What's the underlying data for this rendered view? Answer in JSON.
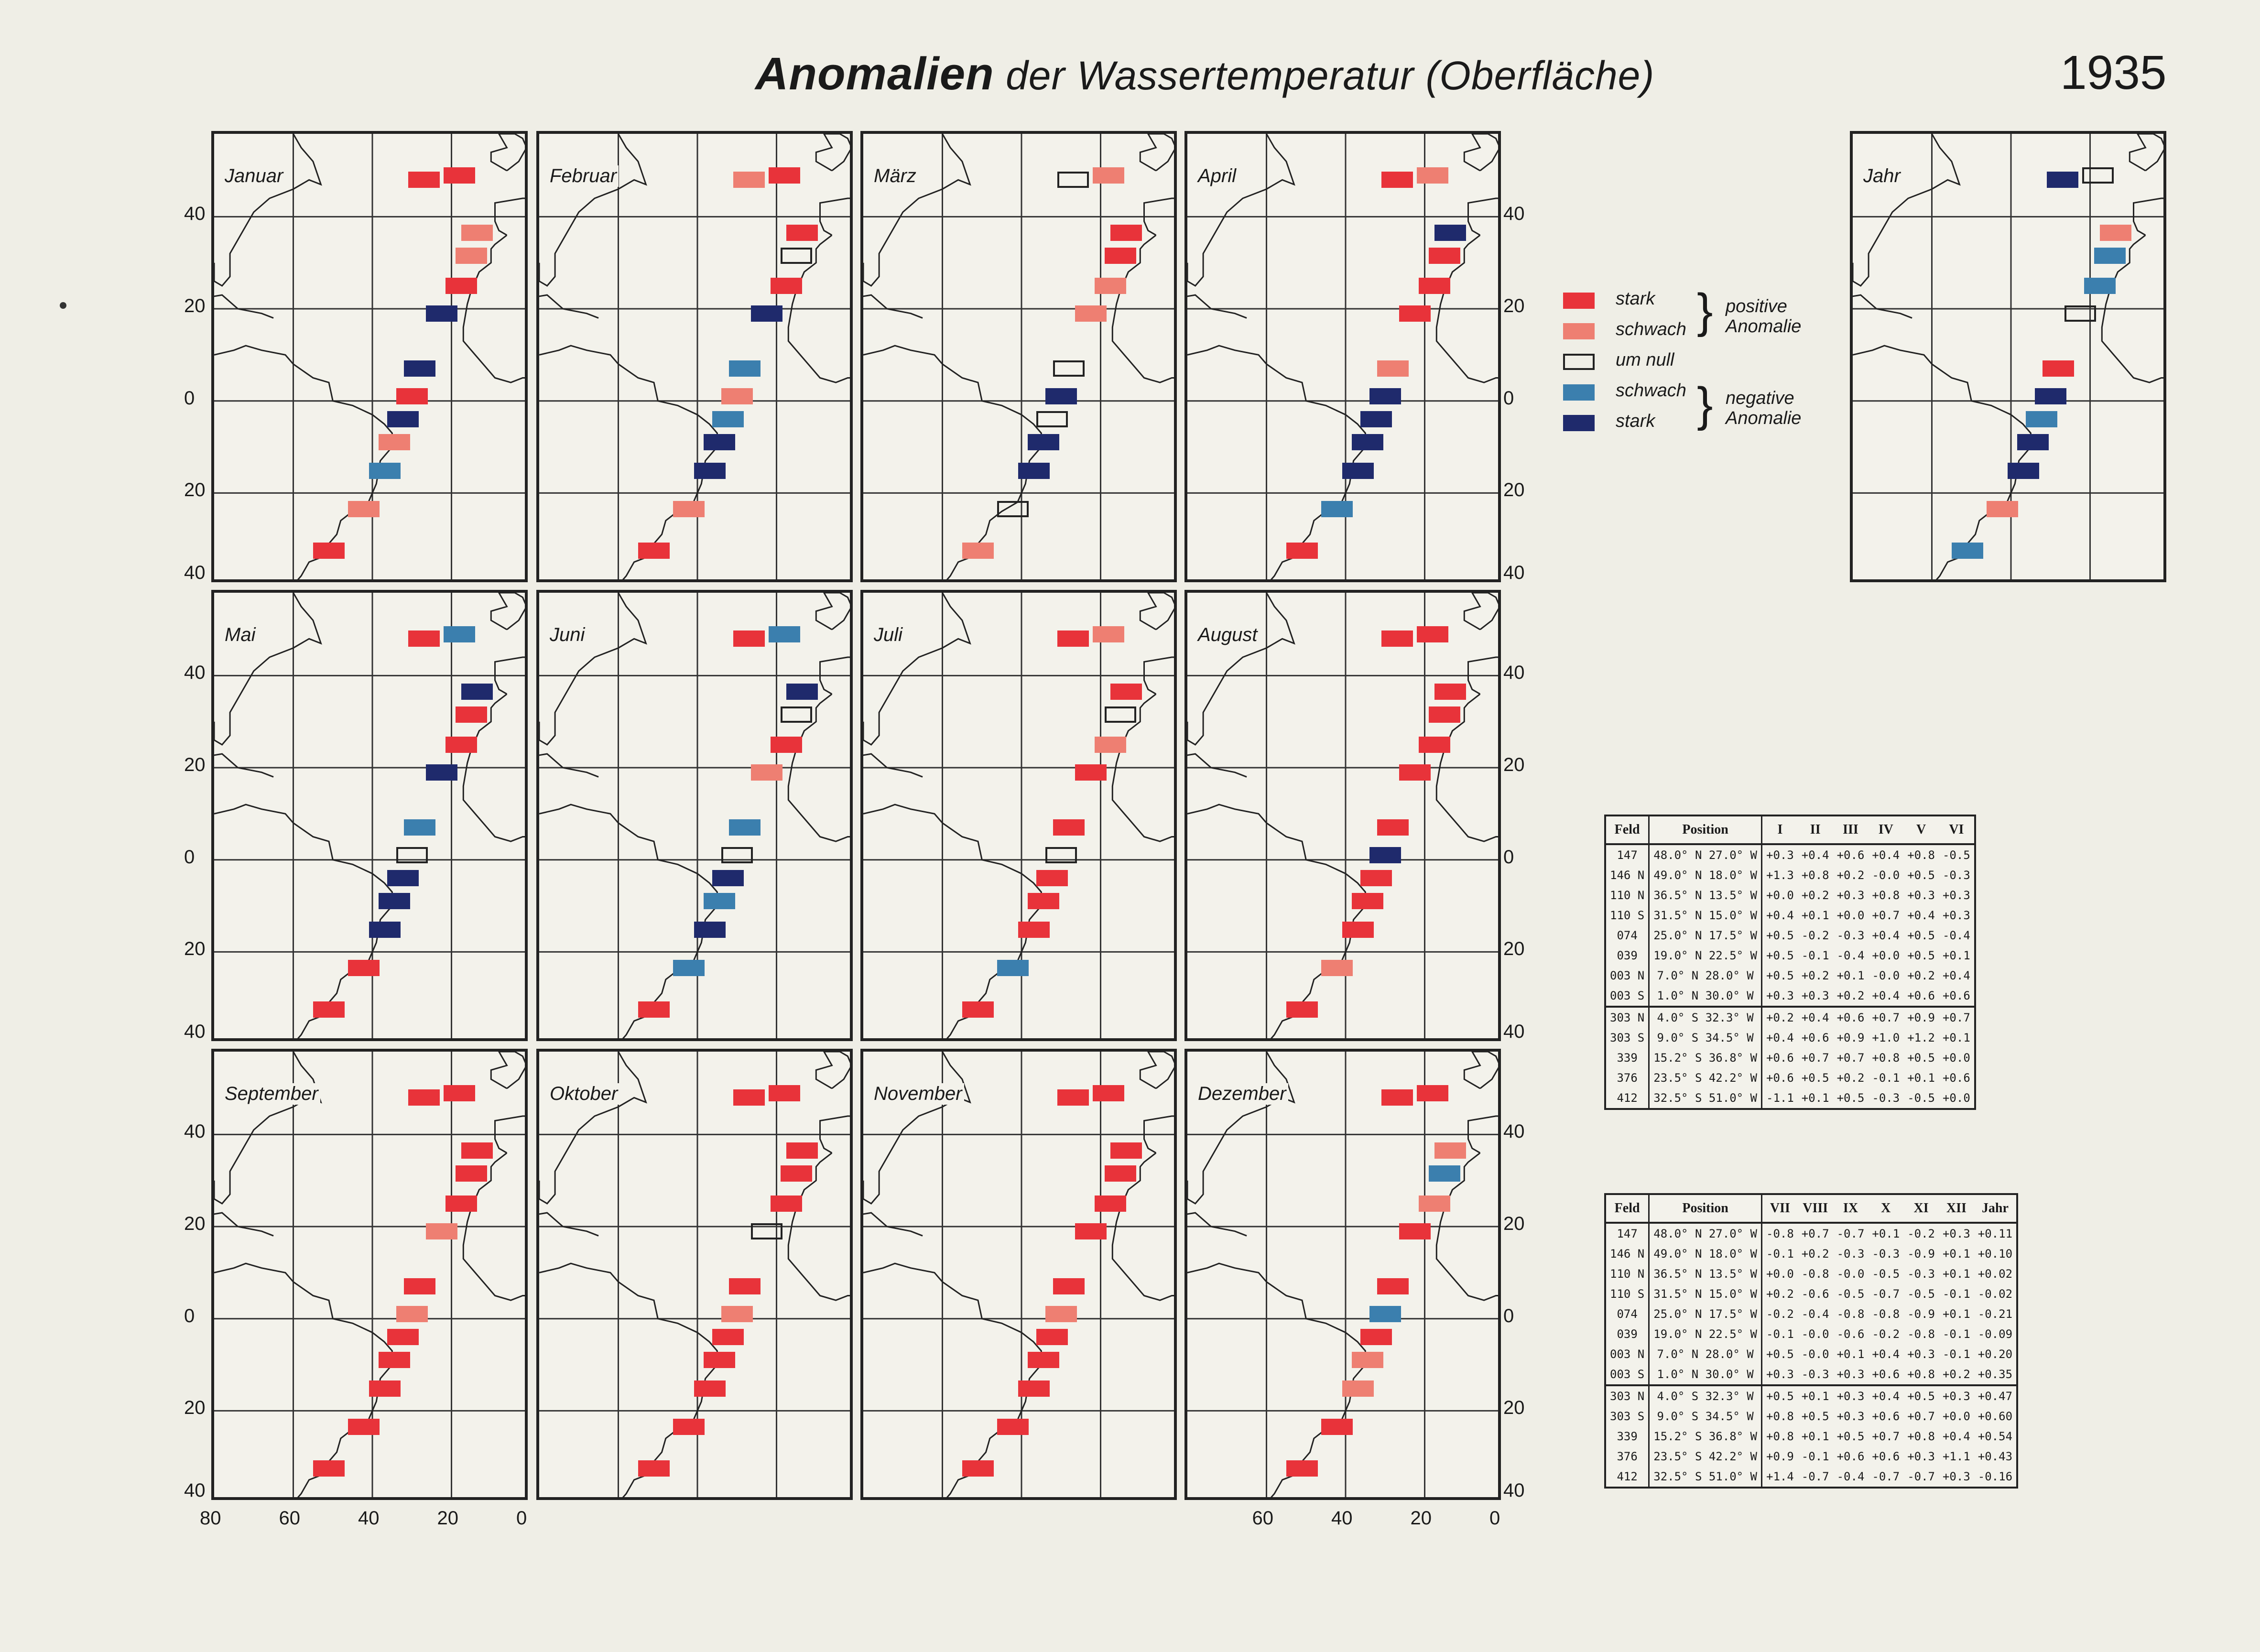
{
  "title_main": "Anomalien",
  "title_rest": "der Wassertemperatur (Oberfläche)",
  "year": "1935",
  "months": [
    "Januar",
    "Februar",
    "März",
    "April",
    "Mai",
    "Juni",
    "Juli",
    "August",
    "September",
    "Oktober",
    "November",
    "Dezember"
  ],
  "annual_label": "Jahr",
  "axis_lat_labels": [
    "40",
    "20",
    "0",
    "20",
    "40"
  ],
  "axis_lon_labels": [
    "80",
    "60",
    "40",
    "20",
    "0"
  ],
  "legend": {
    "items": [
      "stark",
      "schwach",
      "um null",
      "schwach",
      "stark"
    ],
    "positive_label": [
      "positive",
      "Anomalie"
    ],
    "negative_label": [
      "negative",
      "Anomalie"
    ]
  },
  "colors": {
    "stark_positive": "#e8333a",
    "schwach_positive": "#ee7f72",
    "um_null": "#ffffff",
    "schwach_negative": "#3b7fae",
    "stark_negative": "#1f2a6c"
  },
  "fields": [
    {
      "feld": "147",
      "position": "48.0° N 27.0° W",
      "lat": 48.0,
      "lon": 27.0
    },
    {
      "feld": "146 N",
      "position": "49.0° N 18.0° W",
      "lat": 49.0,
      "lon": 18.0
    },
    {
      "feld": "110 N",
      "position": "36.5° N 13.5° W",
      "lat": 36.5,
      "lon": 13.5
    },
    {
      "feld": "110 S",
      "position": "31.5° N 15.0° W",
      "lat": 31.5,
      "lon": 15.0
    },
    {
      "feld": "074",
      "position": "25.0° N 17.5° W",
      "lat": 25.0,
      "lon": 17.5
    },
    {
      "feld": "039",
      "position": "19.0° N 22.5° W",
      "lat": 19.0,
      "lon": 22.5
    },
    {
      "feld": "003 N",
      "position": "7.0° N 28.0° W",
      "lat": 7.0,
      "lon": 28.0
    },
    {
      "feld": "003 S",
      "position": "1.0° N 30.0° W",
      "lat": 1.0,
      "lon": 30.0
    },
    {
      "feld": "303 N",
      "position": "4.0° S 32.3° W",
      "lat": -4.0,
      "lon": 32.3
    },
    {
      "feld": "303 S",
      "position": "9.0° S 34.5° W",
      "lat": -9.0,
      "lon": 34.5
    },
    {
      "feld": "339",
      "position": "15.2° S 36.8° W",
      "lat": -15.2,
      "lon": 36.8
    },
    {
      "feld": "376",
      "position": "23.5° S 42.2° W",
      "lat": -23.5,
      "lon": 42.2
    },
    {
      "feld": "412",
      "position": "32.5° S 51.0° W",
      "lat": -32.5,
      "lon": 51.0
    }
  ],
  "table1": {
    "headers": [
      "Feld",
      "Position",
      "I",
      "II",
      "III",
      "IV",
      "V",
      "VI"
    ],
    "rows": [
      [
        "147",
        "48.0° N 27.0° W",
        "+0.3",
        "+0.4",
        "+0.6",
        "+0.4",
        "+0.8",
        "-0.5"
      ],
      [
        "146 N",
        "49.0° N 18.0° W",
        "+1.3",
        "+0.8",
        "+0.2",
        "-0.0",
        "+0.5",
        "-0.3"
      ],
      [
        "110 N",
        "36.5° N 13.5° W",
        "+0.0",
        "+0.2",
        "+0.3",
        "+0.8",
        "+0.3",
        "+0.3"
      ],
      [
        "110 S",
        "31.5° N 15.0° W",
        "+0.4",
        "+0.1",
        "+0.0",
        "+0.7",
        "+0.4",
        "+0.3"
      ],
      [
        "074",
        "25.0° N 17.5° W",
        "+0.5",
        "-0.2",
        "-0.3",
        "+0.4",
        "+0.5",
        "-0.4"
      ],
      [
        "039",
        "19.0° N 22.5° W",
        "+0.5",
        "-0.1",
        "-0.4",
        "+0.0",
        "+0.5",
        "+0.1"
      ],
      [
        "003 N",
        "7.0° N 28.0° W",
        "+0.5",
        "+0.2",
        "+0.1",
        "-0.0",
        "+0.2",
        "+0.4"
      ],
      [
        "003 S",
        "1.0° N 30.0° W",
        "+0.3",
        "+0.3",
        "+0.2",
        "+0.4",
        "+0.6",
        "+0.6"
      ],
      [
        "303 N",
        "4.0° S 32.3° W",
        "+0.2",
        "+0.4",
        "+0.6",
        "+0.7",
        "+0.9",
        "+0.7"
      ],
      [
        "303 S",
        "9.0° S 34.5° W",
        "+0.4",
        "+0.6",
        "+0.9",
        "+1.0",
        "+1.2",
        "+0.1"
      ],
      [
        "339",
        "15.2° S 36.8° W",
        "+0.6",
        "+0.7",
        "+0.7",
        "+0.8",
        "+0.5",
        "+0.0"
      ],
      [
        "376",
        "23.5° S 42.2° W",
        "+0.6",
        "+0.5",
        "+0.2",
        "-0.1",
        "+0.1",
        "+0.6"
      ],
      [
        "412",
        "32.5° S 51.0° W",
        "-1.1",
        "+0.1",
        "+0.5",
        "-0.3",
        "-0.5",
        "+0.0"
      ]
    ]
  },
  "table2": {
    "headers": [
      "Feld",
      "Position",
      "VII",
      "VIII",
      "IX",
      "X",
      "XI",
      "XII",
      "Jahr"
    ],
    "rows": [
      [
        "147",
        "48.0° N 27.0° W",
        "-0.8",
        "+0.7",
        "-0.7",
        "+0.1",
        "-0.2",
        "+0.3",
        "+0.11"
      ],
      [
        "146 N",
        "49.0° N 18.0° W",
        "-0.1",
        "+0.2",
        "-0.3",
        "-0.3",
        "-0.9",
        "+0.1",
        "+0.10"
      ],
      [
        "110 N",
        "36.5° N 13.5° W",
        "+0.0",
        "-0.8",
        "-0.0",
        "-0.5",
        "-0.3",
        "+0.1",
        "+0.02"
      ],
      [
        "110 S",
        "31.5° N 15.0° W",
        "+0.2",
        "-0.6",
        "-0.5",
        "-0.7",
        "-0.5",
        "-0.1",
        "-0.02"
      ],
      [
        "074",
        "25.0° N 17.5° W",
        "-0.2",
        "-0.4",
        "-0.8",
        "-0.8",
        "-0.9",
        "+0.1",
        "-0.21"
      ],
      [
        "039",
        "19.0° N 22.5° W",
        "-0.1",
        "-0.0",
        "-0.6",
        "-0.2",
        "-0.8",
        "-0.1",
        "-0.09"
      ],
      [
        "003 N",
        "7.0° N 28.0° W",
        "+0.5",
        "-0.0",
        "+0.1",
        "+0.4",
        "+0.3",
        "-0.1",
        "+0.20"
      ],
      [
        "003 S",
        "1.0° N 30.0° W",
        "+0.3",
        "-0.3",
        "+0.3",
        "+0.6",
        "+0.8",
        "+0.2",
        "+0.35"
      ],
      [
        "303 N",
        "4.0° S 32.3° W",
        "+0.5",
        "+0.1",
        "+0.3",
        "+0.4",
        "+0.5",
        "+0.3",
        "+0.47"
      ],
      [
        "303 S",
        "9.0° S 34.5° W",
        "+0.8",
        "+0.5",
        "+0.3",
        "+0.6",
        "+0.7",
        "+0.0",
        "+0.60"
      ],
      [
        "339",
        "15.2° S 36.8° W",
        "+0.8",
        "+0.1",
        "+0.5",
        "+0.7",
        "+0.8",
        "+0.4",
        "+0.54"
      ],
      [
        "376",
        "23.5° S 42.2° W",
        "+0.9",
        "-0.1",
        "+0.6",
        "+0.6",
        "+0.3",
        "+1.1",
        "+0.43"
      ],
      [
        "412",
        "32.5° S 51.0° W",
        "+1.4",
        "-0.7",
        "-0.4",
        "-0.7",
        "-0.7",
        "+0.3",
        "-0.16"
      ]
    ]
  },
  "categories": [
    [
      "ss",
      "sw",
      "nu",
      "ss",
      "ss",
      "ss",
      "ss",
      "ss",
      "ss",
      "ss",
      "ss",
      "ss",
      "nk"
    ],
    [
      "ss",
      "ss",
      "sw",
      "sw",
      "ns",
      "ns",
      "sw",
      "ss",
      "ss",
      "ss",
      "ss",
      "ss",
      "nu"
    ],
    [
      "sw",
      "ss",
      "ss",
      "nk",
      "nk",
      "nk",
      "ss",
      "ss",
      "ss",
      "ss",
      "ss",
      "sw",
      "sw"
    ],
    [
      "sw",
      "nu",
      "ss",
      "ss",
      "ss",
      "nu",
      "nu",
      "ss",
      "ss",
      "ss",
      "ss",
      "ns",
      "ns"
    ],
    [
      "ss",
      "ss",
      "sw",
      "ss",
      "ss",
      "ss",
      "sw",
      "ss",
      "ss",
      "ss",
      "ss",
      "sw",
      "ns"
    ],
    [
      "nk",
      "nk",
      "sw",
      "ss",
      "nk",
      "sw",
      "ss",
      "ss",
      "sw",
      "nu",
      "ss",
      "ss",
      "nu"
    ],
    [
      "nk",
      "ns",
      "nu",
      "sw",
      "ns",
      "ns",
      "ss",
      "ss",
      "ss",
      "ss",
      "ss",
      "ss",
      "ss"
    ],
    [
      "ss",
      "sw",
      "nk",
      "nk",
      "nu",
      "nu",
      "nu",
      "nk",
      "sw",
      "sw",
      "sw",
      "ns",
      "nk"
    ],
    [
      "nk",
      "ns",
      "nu",
      "nk",
      "nk",
      "nk",
      "ss",
      "ss",
      "ss",
      "ss",
      "ss",
      "ss",
      "ns"
    ],
    [
      "sw",
      "nk",
      "nk",
      "nk",
      "nk",
      "ns",
      "ss",
      "ss",
      "ss",
      "ss",
      "ss",
      "sw",
      "nk"
    ],
    [
      "ns",
      "nk",
      "nk",
      "nk",
      "nk",
      "nk",
      "ss",
      "ss",
      "ss",
      "ss",
      "ss",
      "sw",
      "nk"
    ],
    [
      "sw",
      "sw",
      "nu",
      "ns",
      "ss",
      "ns",
      "ns",
      "sw",
      "ss",
      "ss",
      "ss",
      "ss",
      "sw"
    ],
    [
      "ss",
      "ss",
      "sw",
      "ss",
      "ss",
      "ss",
      "ss",
      "ss",
      "ss",
      "ss",
      "ss",
      "ss",
      "ns"
    ]
  ]
}
